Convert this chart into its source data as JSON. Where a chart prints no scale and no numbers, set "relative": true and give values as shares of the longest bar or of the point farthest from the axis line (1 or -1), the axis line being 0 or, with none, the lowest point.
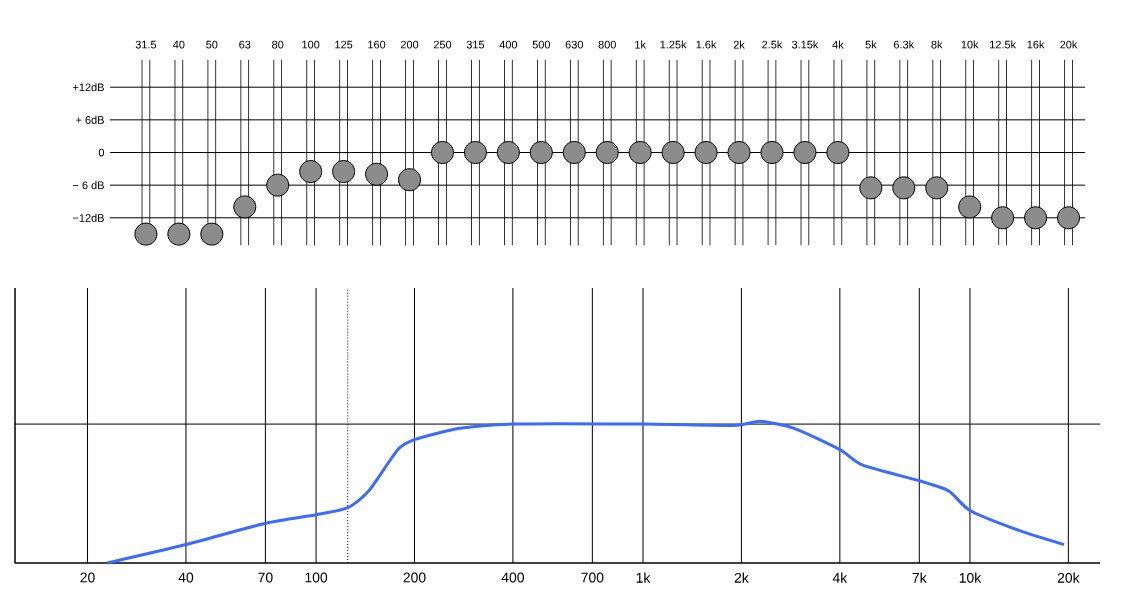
{
  "chart_data": [
    {
      "type": "scatter",
      "categories": [
        "31.5",
        "40",
        "50",
        "63",
        "80",
        "100",
        "125",
        "160",
        "200",
        "250",
        "315",
        "400",
        "500",
        "630",
        "800",
        "1k",
        "1.25k",
        "1.6k",
        "2k",
        "2.5k",
        "3.15k",
        "4k",
        "5k",
        "6.3k",
        "8k",
        "10k",
        "12.5k",
        "16k",
        "20k"
      ],
      "values": [
        -15,
        -15,
        -15,
        -10,
        -6,
        -3.5,
        -3.5,
        -4,
        -5,
        0,
        0,
        0,
        0,
        0,
        0,
        0,
        0,
        0,
        0,
        0,
        0,
        0,
        -6.5,
        -6.5,
        -6.5,
        -10,
        -12,
        -12,
        -12
      ],
      "color": "#8c8c8c",
      "marker": "circle",
      "grid": true,
      "ylim": [
        -17,
        17
      ],
      "yticks": [
        {
          "value": 12,
          "label": "+12dB"
        },
        {
          "value": 6,
          "label": "+ 6dB"
        },
        0,
        {
          "value": -6,
          "label": "− 6 dB"
        },
        {
          "value": -12,
          "label": "−12dB"
        }
      ]
    },
    {
      "type": "line",
      "relative": true,
      "log": "x",
      "grid": "x",
      "tick_labels": "x",
      "color": "#3d6bff",
      "x": [
        23,
        40,
        70,
        100,
        125,
        145,
        178,
        200,
        275,
        400,
        1000,
        1900,
        2280,
        2900,
        4000,
        4700,
        7000,
        8600,
        10000,
        14100,
        19400
      ],
      "values": [
        0,
        0.13,
        0.28,
        0.34,
        0.39,
        0.51,
        0.8,
        0.87,
        0.95,
        0.98,
        0.98,
        0.97,
        1,
        0.95,
        0.8,
        0.69,
        0.58,
        0.51,
        0.37,
        0.23,
        0.13
      ],
      "xlim": [
        12,
        25000
      ],
      "xticks": [
        20,
        40,
        70,
        100,
        200,
        400,
        700,
        {
          "value": 1000,
          "label": "1k"
        },
        {
          "value": 2000,
          "label": "2k"
        },
        {
          "value": 4000,
          "label": "4k"
        },
        {
          "value": 7000,
          "label": "7k"
        },
        {
          "value": 10000,
          "label": "10k"
        },
        {
          "value": 20000,
          "label": "20k"
        }
      ],
      "ref_lines": [
        {
          "axis": "y",
          "value": 0.98
        },
        {
          "axis": "x",
          "value": 125,
          "line_style": "dotted"
        }
      ]
    }
  ]
}
